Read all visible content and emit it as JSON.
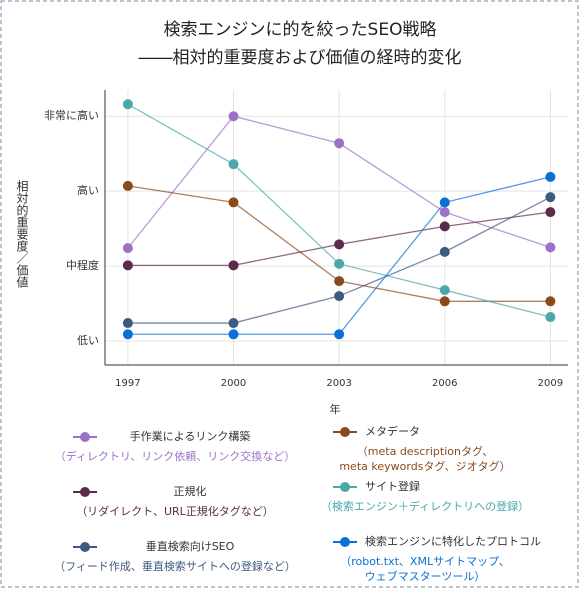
{
  "chart_data": {
    "type": "line",
    "title_lines": [
      "検索エンジンに的を絞ったSEO戦略",
      "――相対的重要度および価値の経時的変化"
    ],
    "x_label": "年",
    "y_label": "相対的重要度／価値",
    "x": [
      1997,
      2000,
      2003,
      2006,
      2009
    ],
    "xlim": [
      1996.35,
      2009.5
    ],
    "xticks": [
      1997,
      2000,
      2003,
      2006,
      2009
    ],
    "ylim": [
      0.68,
      4.35
    ],
    "yticks": [
      {
        "value": 1,
        "label": "低い"
      },
      {
        "value": 2,
        "label": "中程度"
      },
      {
        "value": 3,
        "label": "高い"
      },
      {
        "value": 4,
        "label": "非常に高い"
      }
    ],
    "grid": true,
    "series": [
      {
        "name": "手作業によるリンク構築",
        "color": "#9b72c8",
        "description_lines": [
          "（ディレクトリ、リンク依頼、リンク交換など）"
        ],
        "values": [
          2.24,
          4.0,
          3.64,
          2.72,
          2.25
        ]
      },
      {
        "name": "メタデータ",
        "color": "#8a4a1c",
        "description_lines": [
          "（meta descriptionタグ、",
          "meta keywordsタグ、ジオタグ）"
        ],
        "values": [
          3.07,
          2.85,
          1.8,
          1.53,
          1.53
        ]
      },
      {
        "name": "正規化",
        "color": "#5c2a4a",
        "description_lines": [
          "（リダイレクト、URL正規化タグなど）"
        ],
        "values": [
          2.01,
          2.01,
          2.29,
          2.53,
          2.72
        ]
      },
      {
        "name": "サイト登録",
        "color": "#4aa8a8",
        "description_lines": [
          "（検索エンジン＋ディレクトリへの登録）"
        ],
        "values": [
          4.16,
          3.36,
          2.03,
          1.68,
          1.32
        ]
      },
      {
        "name": "垂直検索向けSEO",
        "color": "#3d5a80",
        "description_lines": [
          "（フィード作成、垂直検索サイトへの登録など）"
        ],
        "values": [
          1.24,
          1.24,
          1.6,
          2.19,
          2.92
        ]
      },
      {
        "name": "検索エンジンに特化したプロトコル",
        "color": "#0a6fd6",
        "description_lines": [
          "（robot.txt、XMLサイトマップ、",
          "ウェブマスターツール）"
        ],
        "values": [
          1.09,
          1.09,
          1.09,
          2.85,
          3.19
        ]
      }
    ]
  }
}
